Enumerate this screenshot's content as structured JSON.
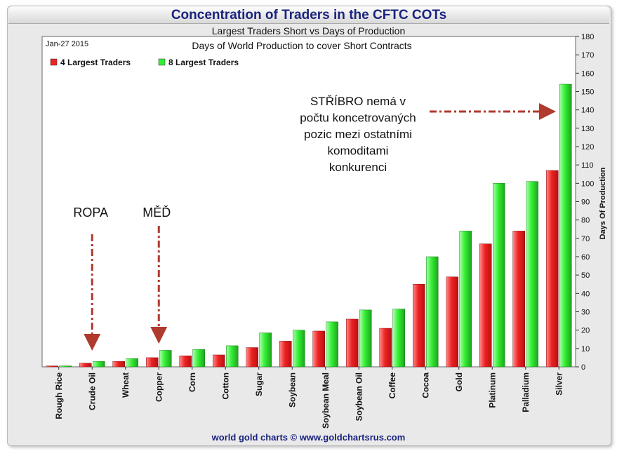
{
  "header": {
    "title": "Concentration of Traders in the CFTC COTs",
    "subtitle": "Largest Traders Short vs Days of Production"
  },
  "footer": {
    "credit": "world gold charts © www.goldchartsrus.com"
  },
  "colors": {
    "series_4": "#ee2222",
    "series_8": "#33ee33",
    "arrow": "#b03a2e",
    "title": "#1a237e"
  },
  "chart_data": {
    "type": "bar",
    "title": "Days of World Production to cover Short Contracts",
    "date_label": "Jan-27 2015",
    "ylabel": "Days Of Production",
    "ylim": [
      0,
      180
    ],
    "yticks": [
      0,
      10,
      20,
      30,
      40,
      50,
      60,
      70,
      80,
      90,
      100,
      110,
      120,
      130,
      140,
      150,
      160,
      170,
      180
    ],
    "grid": false,
    "legend_position": "top-left",
    "categories": [
      "Rough Rice",
      "Crude Oil",
      "Wheat",
      "Copper",
      "Corn",
      "Cotton",
      "Sugar",
      "Soybean",
      "Soybean Meal",
      "Soybean Oil",
      "Coffee",
      "Cocoa",
      "Gold",
      "Platinum",
      "Palladium",
      "Silver"
    ],
    "series": [
      {
        "name": "4 Largest Traders",
        "values": [
          0.5,
          2,
          3,
          5,
          6,
          6.5,
          10.5,
          14,
          19.5,
          26,
          21,
          45,
          49,
          67,
          74,
          107
        ]
      },
      {
        "name": "8 Largest Traders",
        "values": [
          0.5,
          3,
          4.5,
          9,
          9.5,
          11.5,
          18.5,
          20,
          24.5,
          31,
          31.5,
          60,
          74,
          100,
          101,
          154
        ]
      }
    ],
    "annotations": [
      {
        "text": "ROPA"
      },
      {
        "text": "MĚĎ"
      },
      {
        "lines": [
          "STŘÍBRO nemá v",
          "počtu koncetrovaných",
          "pozic mezi ostatními",
          "komoditami",
          "konkurenci"
        ]
      }
    ]
  }
}
